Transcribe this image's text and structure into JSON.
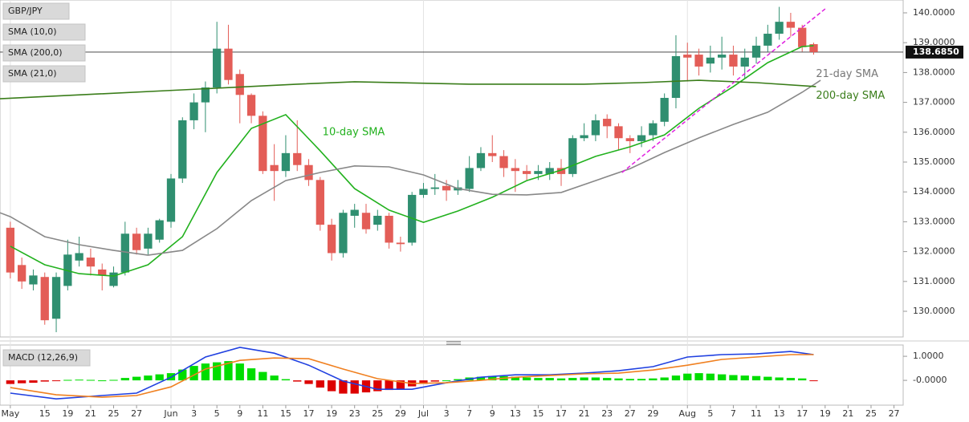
{
  "chart_data": [
    {
      "type": "candlestick",
      "title": "GBP/JPY",
      "indicators": [
        "SMA (10,0)",
        "SMA (200,0)",
        "SMA (21,0)"
      ],
      "up_color": "#2f8f70",
      "down_color": "#e35d57",
      "open": [
        132.8,
        131.55,
        130.9,
        131.15,
        129.75,
        130.85,
        131.7,
        131.8,
        131.4,
        130.85,
        131.3,
        132.6,
        132.1,
        132.4,
        133.0,
        134.45,
        136.4,
        137.0,
        137.5,
        138.8,
        137.95,
        137.25,
        136.55,
        134.9,
        134.7,
        135.3,
        134.9,
        134.4,
        132.9,
        131.95,
        133.2,
        133.3,
        132.9,
        133.2,
        132.3,
        132.3,
        133.9,
        134.1,
        134.2,
        134.05,
        134.1,
        134.8,
        135.3,
        135.2,
        134.8,
        134.7,
        134.6,
        134.6,
        134.8,
        134.6,
        135.8,
        135.9,
        136.45,
        136.2,
        135.8,
        135.7,
        135.9,
        136.35,
        137.15,
        138.6,
        138.6,
        138.3,
        138.5,
        138.6,
        138.2,
        138.5,
        138.9,
        139.3,
        139.7,
        139.5,
        138.95
      ],
      "high": [
        133.0,
        131.8,
        131.4,
        131.3,
        131.3,
        132.4,
        132.5,
        132.1,
        131.6,
        131.5,
        133.0,
        132.8,
        132.8,
        133.1,
        134.6,
        136.5,
        137.3,
        137.7,
        139.7,
        139.6,
        138.1,
        137.3,
        136.7,
        135.6,
        135.9,
        136.4,
        135.1,
        134.5,
        133.1,
        133.4,
        133.6,
        133.6,
        133.4,
        133.3,
        132.5,
        134.0,
        134.3,
        134.6,
        134.4,
        134.4,
        135.2,
        135.5,
        135.9,
        135.4,
        135.1,
        134.9,
        134.9,
        135.0,
        135.1,
        135.9,
        136.3,
        136.6,
        136.6,
        136.3,
        135.9,
        136.2,
        136.4,
        137.3,
        139.25,
        139.0,
        138.8,
        138.9,
        139.2,
        138.9,
        138.8,
        139.2,
        139.6,
        140.2,
        140.0,
        139.6,
        139.0
      ],
      "low": [
        131.1,
        130.75,
        130.7,
        129.55,
        129.3,
        130.7,
        131.5,
        131.2,
        130.7,
        130.8,
        131.2,
        131.9,
        131.9,
        132.3,
        132.8,
        134.3,
        136.1,
        136.0,
        137.3,
        137.6,
        136.3,
        136.3,
        134.6,
        133.7,
        134.5,
        134.7,
        134.2,
        132.7,
        131.7,
        131.8,
        132.8,
        132.6,
        132.7,
        132.1,
        132.0,
        132.2,
        133.8,
        133.9,
        133.7,
        133.9,
        134.0,
        134.7,
        135.0,
        134.5,
        134.0,
        134.4,
        134.4,
        134.4,
        134.2,
        134.5,
        135.7,
        135.7,
        135.8,
        135.4,
        135.3,
        135.5,
        135.7,
        136.2,
        136.8,
        137.7,
        137.9,
        138.0,
        138.1,
        137.9,
        137.8,
        138.3,
        138.7,
        139.1,
        139.2,
        138.7,
        138.6
      ],
      "close": [
        131.3,
        131.0,
        131.2,
        129.7,
        131.15,
        131.9,
        131.95,
        131.5,
        131.2,
        131.3,
        132.6,
        132.05,
        132.6,
        133.05,
        134.45,
        136.4,
        137.0,
        137.5,
        138.8,
        137.75,
        137.25,
        136.55,
        134.7,
        134.7,
        135.3,
        134.9,
        134.4,
        132.9,
        131.95,
        133.3,
        133.4,
        132.75,
        133.2,
        132.3,
        132.25,
        133.9,
        134.1,
        134.15,
        134.05,
        134.15,
        134.8,
        135.3,
        135.2,
        134.8,
        134.7,
        134.6,
        134.7,
        134.8,
        134.6,
        135.8,
        135.9,
        136.4,
        136.2,
        135.8,
        135.7,
        135.9,
        136.3,
        137.15,
        138.55,
        138.5,
        138.2,
        138.5,
        138.6,
        138.2,
        138.5,
        138.9,
        139.3,
        139.7,
        139.5,
        138.85,
        138.685
      ],
      "series": [
        {
          "color": "#22b11e",
          "x": [
            0,
            3,
            6,
            9,
            12,
            15,
            18,
            21,
            24,
            27,
            30,
            33,
            36,
            39,
            42,
            45,
            48,
            51,
            54,
            57,
            60,
            63,
            66,
            69,
            70
          ],
          "values": [
            132.18,
            131.56,
            131.26,
            131.18,
            131.56,
            132.5,
            134.65,
            136.13,
            136.59,
            135.38,
            134.11,
            133.39,
            132.98,
            133.36,
            133.82,
            134.38,
            134.73,
            135.19,
            135.51,
            135.91,
            136.8,
            137.53,
            138.33,
            138.87,
            138.9
          ]
        },
        {
          "color": "#888888",
          "x": [
            -0.9,
            0,
            3,
            6,
            9,
            12,
            15,
            18,
            21,
            24,
            27,
            30,
            33,
            36,
            39,
            42,
            45,
            48,
            51,
            54,
            57,
            60,
            63,
            66,
            69,
            70.6
          ],
          "values": [
            133.3,
            133.17,
            132.5,
            132.23,
            132.04,
            131.88,
            132.04,
            132.77,
            133.71,
            134.38,
            134.65,
            134.87,
            134.84,
            134.57,
            134.11,
            133.92,
            133.9,
            133.98,
            134.38,
            134.78,
            135.32,
            135.81,
            136.26,
            136.67,
            137.34,
            137.74
          ]
        },
        {
          "color": "#3a7d1a",
          "x": [
            -0.9,
            15,
            25,
            30,
            40,
            50,
            55,
            60,
            65,
            70.2
          ],
          "values": [
            137.12,
            137.42,
            137.61,
            137.69,
            137.61,
            137.61,
            137.66,
            137.74,
            137.66,
            137.53
          ]
        },
        {
          "color": "#e020e0",
          "dashed": true,
          "x": [
            53.3,
            71.1
          ],
          "values": [
            134.65,
            140.16
          ]
        }
      ],
      "annotations": [
        {
          "text": "10-day SMA",
          "x": 27.2,
          "y": 136.0,
          "color": "#22b11e"
        },
        {
          "text": "21-day SMA",
          "x": 70.2,
          "y": 137.95,
          "color": "#777777"
        },
        {
          "text": "200-day SMA",
          "x": 70.2,
          "y": 137.22,
          "color": "#3a7d1a"
        }
      ],
      "last_price": {
        "value": 138.685,
        "label": "138.6850"
      },
      "xlim": [
        -0.9,
        77.8
      ],
      "xticks": [
        {
          "value": 0,
          "label": "May"
        },
        {
          "value": 3,
          "label": "15"
        },
        {
          "value": 5,
          "label": "19"
        },
        {
          "value": 7,
          "label": "21"
        },
        {
          "value": 9,
          "label": "25"
        },
        {
          "value": 11,
          "label": "27"
        },
        {
          "value": 14,
          "label": "Jun"
        },
        {
          "value": 16,
          "label": "3"
        },
        {
          "value": 18,
          "label": "5"
        },
        {
          "value": 20,
          "label": "9"
        },
        {
          "value": 22,
          "label": "11"
        },
        {
          "value": 24,
          "label": "15"
        },
        {
          "value": 26,
          "label": "17"
        },
        {
          "value": 28,
          "label": "19"
        },
        {
          "value": 30,
          "label": "23"
        },
        {
          "value": 32,
          "label": "25"
        },
        {
          "value": 34,
          "label": "29"
        },
        {
          "value": 36,
          "label": "Jul"
        },
        {
          "value": 38,
          "label": "3"
        },
        {
          "value": 40,
          "label": "7"
        },
        {
          "value": 42,
          "label": "9"
        },
        {
          "value": 44,
          "label": "13"
        },
        {
          "value": 46,
          "label": "15"
        },
        {
          "value": 48,
          "label": "17"
        },
        {
          "value": 50,
          "label": "21"
        },
        {
          "value": 52,
          "label": "23"
        },
        {
          "value": 54,
          "label": "27"
        },
        {
          "value": 56,
          "label": "29"
        },
        {
          "value": 59,
          "label": "Aug"
        },
        {
          "value": 61,
          "label": "5"
        },
        {
          "value": 63,
          "label": "7"
        },
        {
          "value": 65,
          "label": "11"
        },
        {
          "value": 67,
          "label": "13"
        },
        {
          "value": 69,
          "label": "17"
        },
        {
          "value": 71,
          "label": "19"
        },
        {
          "value": 73,
          "label": "21"
        },
        {
          "value": 75,
          "label": "25"
        },
        {
          "value": 77,
          "label": "27"
        }
      ],
      "ylim": [
        129.14,
        140.43
      ],
      "yticks": [
        {
          "value": 130,
          "label": "130.0000"
        },
        {
          "value": 131,
          "label": "131.0000"
        },
        {
          "value": 132,
          "label": "132.0000"
        },
        {
          "value": 133,
          "label": "133.0000"
        },
        {
          "value": 134,
          "label": "134.0000"
        },
        {
          "value": 135,
          "label": "135.0000"
        },
        {
          "value": 136,
          "label": "136.0000"
        },
        {
          "value": 137,
          "label": "137.0000"
        },
        {
          "value": 138,
          "label": "138.0000"
        },
        {
          "value": 139,
          "label": "139.0000"
        },
        {
          "value": 140,
          "label": "140.0000"
        }
      ]
    },
    {
      "type": "macd",
      "title": "MACD (12,26,9)",
      "up_color": "#00dd00",
      "down_color": "#dd0000",
      "histogram": [
        -0.15,
        -0.12,
        -0.1,
        -0.05,
        -0.02,
        0.02,
        0.03,
        0.02,
        0.0,
        0.02,
        0.1,
        0.15,
        0.2,
        0.25,
        0.3,
        0.45,
        0.6,
        0.7,
        0.75,
        0.8,
        0.7,
        0.5,
        0.35,
        0.2,
        0.05,
        -0.05,
        -0.15,
        -0.3,
        -0.45,
        -0.55,
        -0.55,
        -0.5,
        -0.45,
        -0.4,
        -0.35,
        -0.25,
        -0.15,
        -0.05,
        0.0,
        0.05,
        0.12,
        0.15,
        0.18,
        0.17,
        0.15,
        0.12,
        0.1,
        0.1,
        0.08,
        0.1,
        0.12,
        0.12,
        0.1,
        0.08,
        0.06,
        0.06,
        0.08,
        0.12,
        0.2,
        0.28,
        0.3,
        0.28,
        0.25,
        0.22,
        0.2,
        0.18,
        0.15,
        0.12,
        0.1,
        0.08,
        -0.02
      ],
      "series": [
        {
          "color": "#2040e0",
          "x": [
            0,
            4,
            8,
            11,
            14,
            17,
            20,
            23,
            26,
            29,
            32,
            35,
            38,
            41,
            44,
            47,
            50,
            53,
            56,
            59,
            62,
            65,
            68,
            70
          ],
          "values": [
            -0.53,
            -0.77,
            -0.63,
            -0.53,
            0.13,
            0.97,
            1.37,
            1.13,
            0.63,
            -0.03,
            -0.37,
            -0.37,
            -0.1,
            0.13,
            0.23,
            0.23,
            0.3,
            0.4,
            0.57,
            0.97,
            1.07,
            1.1,
            1.2,
            1.07
          ]
        },
        {
          "color": "#f08020",
          "x": [
            0,
            4,
            8,
            11,
            14,
            17,
            20,
            23,
            26,
            29,
            32,
            35,
            38,
            41,
            44,
            47,
            50,
            53,
            56,
            59,
            62,
            65,
            68,
            70
          ],
          "values": [
            -0.3,
            -0.6,
            -0.7,
            -0.63,
            -0.27,
            0.47,
            0.83,
            0.93,
            0.9,
            0.47,
            0.07,
            -0.13,
            -0.1,
            0.0,
            0.13,
            0.2,
            0.27,
            0.3,
            0.43,
            0.63,
            0.87,
            0.97,
            1.07,
            1.07
          ]
        }
      ],
      "ylim": [
        -1.03,
        1.47
      ],
      "yticks": [
        {
          "value": 1,
          "label": "1.0000"
        },
        {
          "value": 0,
          "label": "-0.0000"
        }
      ]
    }
  ]
}
